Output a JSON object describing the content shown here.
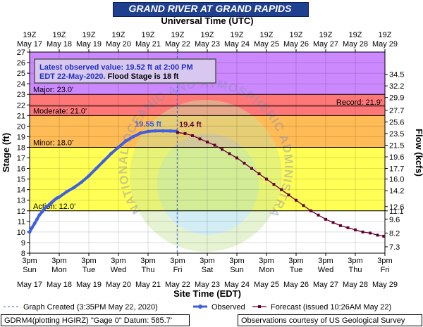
{
  "title": "GRAND RIVER AT GRAND RAPIDS",
  "top_axis_label": "Universal Time (UTC)",
  "bottom_axis_label": "Site Time (EDT)",
  "y_left_label": "Stage (ft)",
  "y_right_label": "Flow (kcfs)",
  "info_box": {
    "line1": "Latest observed value: 19.52 ft at 2:00 PM",
    "line2a": "EDT 22-May-2020.",
    "line2b": "Flood Stage is 18 ft"
  },
  "footer_left": "GDRM4(plotting HGIRZ) \"Gage 0\" Datum: 585.7'",
  "footer_right": "Observations courtesy of US Geological Survey",
  "watermark_text": "NATIONAL OCEANIC AND ATMOSPHERIC ADMINISTRATION · U.S. DEPARTMENT OF COMMERCE ·",
  "colors": {
    "title_bg": "#1f3f8f",
    "major": "#cc88ff",
    "moderate": "#ff7777",
    "minor": "#ffbb55",
    "action": "#ffff55",
    "observed": "#3f5fe0",
    "forecast": "#660033"
  },
  "chart_data": {
    "type": "line",
    "y_range": [
      8,
      27
    ],
    "x_range": [
      "2020-05-17 15:00",
      "2020-05-29 15:00"
    ],
    "grid": true,
    "legend_position": "bottom",
    "top_ticks": [
      {
        "l1": "19Z",
        "l2": "May 17"
      },
      {
        "l1": "19Z",
        "l2": "May 18"
      },
      {
        "l1": "19Z",
        "l2": "May 19"
      },
      {
        "l1": "19Z",
        "l2": "May 20"
      },
      {
        "l1": "19Z",
        "l2": "May 21"
      },
      {
        "l1": "19Z",
        "l2": "May 22"
      },
      {
        "l1": "19Z",
        "l2": "May 23"
      },
      {
        "l1": "19Z",
        "l2": "May 24"
      },
      {
        "l1": "19Z",
        "l2": "May 25"
      },
      {
        "l1": "19Z",
        "l2": "May 26"
      },
      {
        "l1": "19Z",
        "l2": "May 27"
      },
      {
        "l1": "19Z",
        "l2": "May 28"
      },
      {
        "l1": "19Z",
        "l2": "May 29"
      }
    ],
    "bottom_ticks": [
      {
        "l1": "3pm",
        "l2": "Sun",
        "l3": "May 17"
      },
      {
        "l1": "3pm",
        "l2": "Mon",
        "l3": "May 18"
      },
      {
        "l1": "3pm",
        "l2": "Tue",
        "l3": "May 19"
      },
      {
        "l1": "3pm",
        "l2": "Wed",
        "l3": "May 20"
      },
      {
        "l1": "3pm",
        "l2": "Thu",
        "l3": "May 21"
      },
      {
        "l1": "3pm",
        "l2": "Fri",
        "l3": "May 22"
      },
      {
        "l1": "3pm",
        "l2": "Sat",
        "l3": "May 23"
      },
      {
        "l1": "3pm",
        "l2": "Sun",
        "l3": "May 24"
      },
      {
        "l1": "3pm",
        "l2": "Mon",
        "l3": "May 25"
      },
      {
        "l1": "3pm",
        "l2": "Tue",
        "l3": "May 26"
      },
      {
        "l1": "3pm",
        "l2": "Wed",
        "l3": "May 27"
      },
      {
        "l1": "3pm",
        "l2": "Thu",
        "l3": "May 28"
      },
      {
        "l1": "3pm",
        "l2": "Fri",
        "l3": "May 29"
      }
    ],
    "y_ticks_left": [
      8,
      9,
      10,
      11,
      12,
      13,
      14,
      15,
      16,
      17,
      18,
      19,
      20,
      21,
      22,
      23,
      24,
      25,
      26,
      27
    ],
    "y_ticks_right": [
      {
        "stage": 8.6,
        "label": "7.3"
      },
      {
        "stage": 9.9,
        "label": "8.2"
      },
      {
        "stage": 11.2,
        "label": "9.6"
      },
      {
        "stage": 12.0,
        "label": "11.1"
      },
      {
        "stage": 12.4,
        "label": "12.6"
      },
      {
        "stage": 13.9,
        "label": "14.2"
      },
      {
        "stage": 15.0,
        "label": "16.0"
      },
      {
        "stage": 16.0,
        "label": "17.7"
      },
      {
        "stage": 17.1,
        "label": "19.6"
      },
      {
        "stage": 18.2,
        "label": "21.5"
      },
      {
        "stage": 19.3,
        "label": "23.5"
      },
      {
        "stage": 20.4,
        "label": "25.6"
      },
      {
        "stage": 21.5,
        "label": "27.7"
      },
      {
        "stage": 22.7,
        "label": "29.9"
      },
      {
        "stage": 23.8,
        "label": "32.2"
      },
      {
        "stage": 24.9,
        "label": "34.5"
      }
    ],
    "flood_categories": [
      {
        "name": "Major",
        "label": "Major: 23.0'",
        "from": 23,
        "to": 27
      },
      {
        "name": "Moderate",
        "label": "Moderate: 21.0'",
        "from": 21,
        "to": 23
      },
      {
        "name": "Minor",
        "label": "Minor: 18.0'",
        "from": 18,
        "to": 21
      },
      {
        "name": "Action",
        "label": "Action: 12.0'",
        "from": 12,
        "to": 18
      }
    ],
    "record": {
      "label": "Record: 21.9'",
      "value": 21.9
    },
    "graph_created_x": 4.983,
    "observed": {
      "name": "Observed",
      "x": [
        0.0,
        0.08,
        0.17,
        0.25,
        0.33,
        0.42,
        0.5,
        0.58,
        0.67,
        0.75,
        0.83,
        0.92,
        1.0,
        1.25,
        1.5,
        1.75,
        2.0,
        2.25,
        2.5,
        2.75,
        3.0,
        3.25,
        3.5,
        3.75,
        4.0,
        4.25,
        4.5,
        4.75,
        4.96
      ],
      "y": [
        10.0,
        10.4,
        10.8,
        11.2,
        11.6,
        11.9,
        12.2,
        12.4,
        12.6,
        12.8,
        13.0,
        13.2,
        13.3,
        13.8,
        14.2,
        14.7,
        15.3,
        16.0,
        16.7,
        17.4,
        18.0,
        18.6,
        19.0,
        19.35,
        19.5,
        19.55,
        19.55,
        19.54,
        19.52
      ],
      "peak_label": "19.55 ft",
      "peak_index": 26
    },
    "forecast": {
      "name": "Forecast",
      "x": [
        5.0,
        5.25,
        5.5,
        5.75,
        6.0,
        6.25,
        6.5,
        6.75,
        7.0,
        7.25,
        7.5,
        7.75,
        8.0,
        8.25,
        8.5,
        8.75,
        9.0,
        9.25,
        9.5,
        9.75,
        10.0,
        10.25,
        10.5,
        10.75,
        11.0,
        11.25,
        11.5,
        11.75,
        11.96
      ],
      "y": [
        19.4,
        19.3,
        19.1,
        18.8,
        18.5,
        18.2,
        17.8,
        17.4,
        17.0,
        16.5,
        16.0,
        15.5,
        15.0,
        14.5,
        14.0,
        13.5,
        13.0,
        12.5,
        12.0,
        11.6,
        11.2,
        10.9,
        10.6,
        10.4,
        10.2,
        10.0,
        9.9,
        9.7,
        9.6
      ],
      "peak_label": "19.4 ft",
      "peak_index": 0
    },
    "legend": {
      "graph_created": "Graph Created (3:35PM May 22, 2020)",
      "observed": "Observed",
      "forecast": "Forecast (issued 10:26AM May 22)"
    }
  }
}
